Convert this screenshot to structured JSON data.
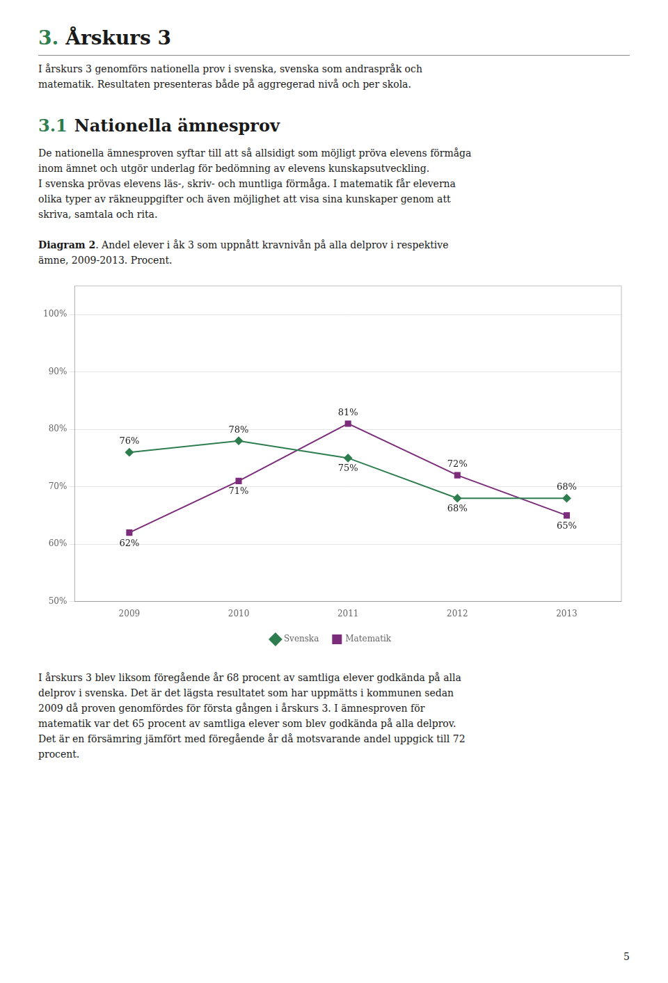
{
  "page": {
    "heading": {
      "number": "3.",
      "text": "Årskurs 3",
      "color": "#2e7d4f"
    },
    "paragraph1": [
      "I årskurs 3 genomförs nationella prov i svenska, svenska som andraspråk och",
      "matematik. Resultaten presenteras både på aggregerad nivå och per skola."
    ],
    "section": {
      "number": "3.1",
      "text": "Nationella ämnesprov",
      "color": "#2e7d4f"
    },
    "paragraph2": [
      "De nationella ämnesproven syftar till att så allsidigt som möjligt pröva elevens förmåga",
      "inom ämnet och utgör underlag för bedömning av elevens kunskapsutveckling.",
      "I svenska prövas elevens läs-, skriv- och muntliga förmåga. I matematik får eleverna",
      "olika typer av räkneuppgifter och även möjlighet att visa sina kunskaper genom att",
      "skriva, samtala och rita."
    ],
    "caption": {
      "bold": "Diagram 2",
      "lines": [
        ". Andel elever i åk 3 som uppnått kravnivån på alla delprov i respektive",
        "ämne, 2009-2013. Procent."
      ]
    },
    "paragraph3": [
      "I årskurs 3 blev liksom föregående år 68 procent av samtliga elever godkända på alla",
      "delprov i svenska. Det är det lägsta resultatet som har uppmätts i kommunen sedan",
      "2009 då proven genomfördes för första gången i årskurs 3. I ämnesproven för",
      "matematik var det 65 procent av samtliga elever som blev godkända på alla delprov.",
      "Det är en försämring jämfört med föregående år då motsvarande andel uppgick till 72",
      "procent."
    ],
    "page_number": "5"
  },
  "chart_data": {
    "type": "line",
    "x": [
      2009,
      2010,
      2011,
      2012,
      2013
    ],
    "xlim": [
      2008.5,
      2013.5
    ],
    "xticks": [
      2009,
      2010,
      2011,
      2012,
      2013
    ],
    "ylim": [
      50,
      105
    ],
    "yticks": [
      {
        "value": 50,
        "label": "50%"
      },
      {
        "value": 60,
        "label": "60%"
      },
      {
        "value": 70,
        "label": "70%"
      },
      {
        "value": 80,
        "label": "80%"
      },
      {
        "value": 90,
        "label": "90%"
      },
      {
        "value": 100,
        "label": "100%"
      }
    ],
    "grid": true,
    "legend": "bottom",
    "data_labels": true,
    "series": [
      {
        "name": "Svenska",
        "color": "#2e7d4f",
        "marker": "diamond",
        "values": [
          76,
          78,
          75,
          68,
          68
        ],
        "value_labels": [
          "76%",
          "78%",
          "75%",
          "68%",
          "68%"
        ]
      },
      {
        "name": "Matematik",
        "color": "#7b2d7b",
        "marker": "square",
        "values": [
          62,
          71,
          81,
          72,
          65
        ],
        "value_labels": [
          "62%",
          "71%",
          "81%",
          "72%",
          "65%"
        ]
      }
    ]
  }
}
